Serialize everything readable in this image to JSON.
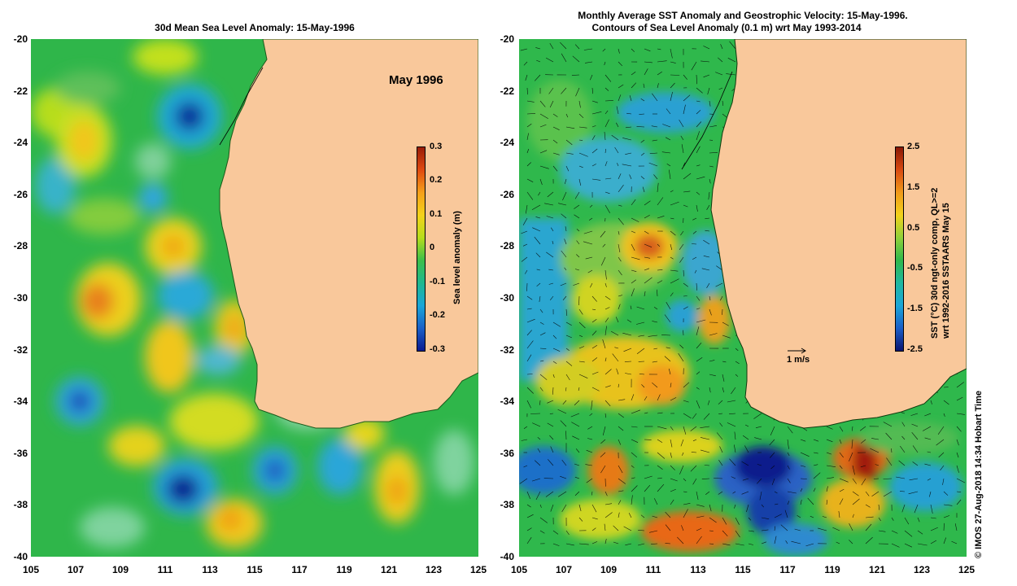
{
  "left_panel": {
    "title": "30d Mean Sea Level Anomaly: 15-May-1996",
    "month_label": "May 1996",
    "colorbar": {
      "label": "Sea level anomaly (m)",
      "ticks": [
        "0.3",
        "0.2",
        "0.1",
        "0",
        "-0.1",
        "-0.2",
        "-0.3"
      ]
    }
  },
  "right_panel": {
    "title_line1": "Monthly Average SST Anomaly  and Geostrophic Velocity: 15-May-1996.",
    "title_line2": "Contours of Sea Level Anomaly (0.1 m) wrt May 1993-2014",
    "colorbar": {
      "label_line1": "SST (°C) 30d ngt-only comp, QL>=2",
      "label_line2": "wrt 1992-2016 SSTAARS May 15",
      "ticks": [
        "2.5",
        "1.5",
        "0.5",
        "-0.5",
        "-1.5",
        "-2.5"
      ]
    },
    "vector_scale_label": "1 m/s"
  },
  "axes": {
    "y_ticks": [
      "-20",
      "-22",
      "-24",
      "-26",
      "-28",
      "-30",
      "-32",
      "-34",
      "-36",
      "-38",
      "-40"
    ],
    "x_ticks": [
      "105",
      "107",
      "109",
      "111",
      "113",
      "115",
      "117",
      "119",
      "121",
      "123",
      "125"
    ],
    "lat_range": [
      -40,
      -20
    ],
    "lon_range": [
      105,
      125
    ]
  },
  "credit": "© IMOS 27-Aug-2018 14:34 Hobart Time",
  "colors": {
    "land": "#f9c89b",
    "ocean_base": "#33b84a",
    "positive": "#f4d21a",
    "strong_positive": "#e05a10",
    "negative": "#1aa6d8",
    "strong_negative": "#0a1a90"
  }
}
